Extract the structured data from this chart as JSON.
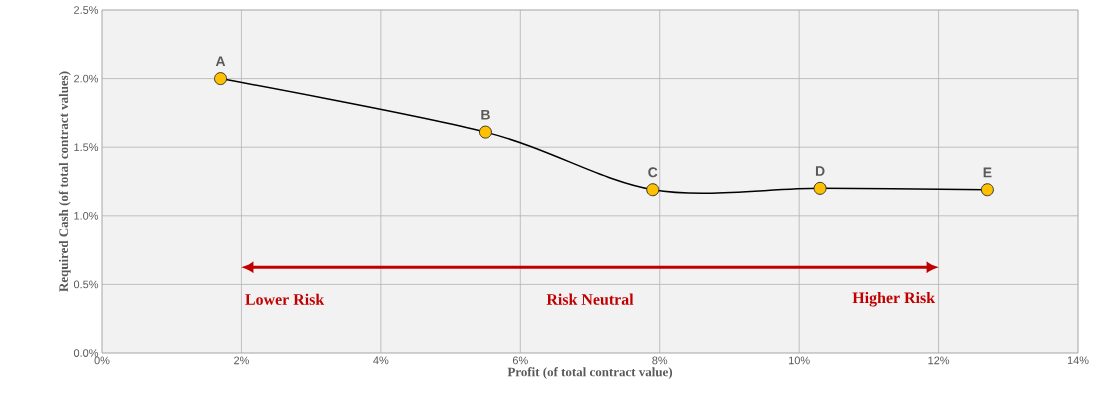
{
  "chart_data": {
    "type": "line",
    "xlabel": "Profit (of total contract value)",
    "ylabel": "Required Cash (of total contract values)",
    "x": [
      1.7,
      5.5,
      7.9,
      10.3,
      12.7
    ],
    "series": [
      {
        "color": "#000000",
        "values": [
          2.0,
          1.61,
          1.19,
          1.2,
          1.19
        ]
      }
    ],
    "xlim": [
      0,
      14
    ],
    "ylim": [
      0,
      2.5
    ],
    "xticks": [
      {
        "value": 0,
        "label": "0%"
      },
      {
        "value": 2,
        "label": "2%"
      },
      {
        "value": 4,
        "label": "4%"
      },
      {
        "value": 6,
        "label": "6%"
      },
      {
        "value": 8,
        "label": "8%"
      },
      {
        "value": 10,
        "label": "10%"
      },
      {
        "value": 12,
        "label": "12%"
      },
      {
        "value": 14,
        "label": "14%"
      }
    ],
    "yticks": [
      {
        "value": 0,
        "label": "0.0%"
      },
      {
        "value": 0.5,
        "label": "0.5%"
      },
      {
        "value": 1.0,
        "label": "1.0%"
      },
      {
        "value": 1.5,
        "label": "1.5%"
      },
      {
        "value": 2.0,
        "label": "2.0%"
      },
      {
        "value": 2.5,
        "label": "2.5%"
      }
    ],
    "grid": true,
    "marker": "circle",
    "line_style": "solid",
    "annotations": [
      {
        "text": "A",
        "x": 1.7,
        "y": 2.0
      },
      {
        "text": "B",
        "x": 5.5,
        "y": 1.61
      },
      {
        "text": "C",
        "x": 7.9,
        "y": 1.19
      },
      {
        "text": "D",
        "x": 10.3,
        "y": 1.2
      },
      {
        "text": "E",
        "x": 12.7,
        "y": 1.19
      },
      "Lower Risk",
      "Risk Neutral",
      "Higher Risk"
    ]
  }
}
